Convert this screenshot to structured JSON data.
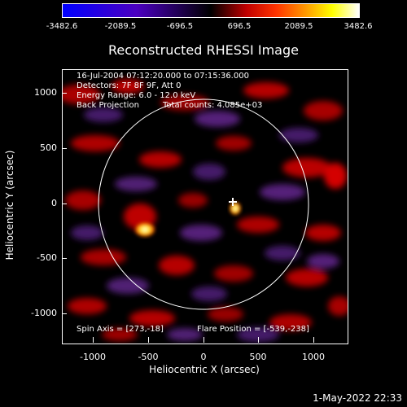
{
  "colorbar": {
    "ticks": [
      "-3482.6",
      "-2089.5",
      "-696.5",
      "696.5",
      "2089.5",
      "3482.6"
    ]
  },
  "title": "Reconstructed RHESSI Image",
  "info": {
    "time": "16-Jul-2004 07:12:20.000 to 07:15:36.000",
    "detectors": "Detectors: 7F 8F 9F, Att 0",
    "energy": "Energy Range: 6.0 - 12.0 keV",
    "method": "Back Projection",
    "counts": "Total counts: 4.085e+03"
  },
  "footer": {
    "spin_axis": "Spin Axis = [273,-18]",
    "flare_position": "Flare Position = [-539,-238]"
  },
  "axes": {
    "xlabel": "Heliocentric X (arcsec)",
    "ylabel": "Heliocentric Y (arcsec)",
    "xticks": [
      "-1000",
      "-500",
      "0",
      "500",
      "1000"
    ],
    "yticks": [
      "1000",
      "500",
      "0",
      "-500",
      "-1000"
    ]
  },
  "datestamp": "1-May-2022 22:33",
  "colors": {
    "background": "#000000",
    "text": "#ffffff",
    "limb_circle": "#ffffff"
  }
}
